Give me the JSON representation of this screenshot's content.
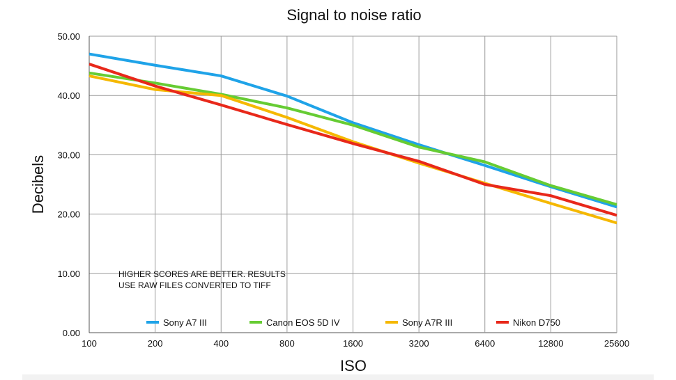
{
  "chart_data": {
    "type": "line",
    "title": "Signal to noise ratio",
    "xlabel": "ISO",
    "ylabel": "Decibels",
    "categories": [
      "100",
      "200",
      "400",
      "800",
      "1600",
      "3200",
      "6400",
      "12800",
      "25600"
    ],
    "y_ticks": [
      "0.00",
      "10.00",
      "20.00",
      "30.00",
      "40.00",
      "50.00"
    ],
    "ylim": [
      0,
      50
    ],
    "grid": true,
    "legend_position": "bottom",
    "annotation": [
      "HIGHER SCORES ARE BETTER. RESULTS",
      "USE RAW FILES CONVERTED TO TIFF"
    ],
    "series": [
      {
        "name": "Sony A7 III",
        "color": "#1fa3e8",
        "values": [
          47.0,
          45.1,
          43.3,
          39.9,
          35.4,
          31.7,
          28.2,
          24.6,
          21.2
        ]
      },
      {
        "name": "Canon EOS 5D IV",
        "color": "#66cc33",
        "values": [
          43.8,
          42.1,
          40.2,
          37.9,
          35.0,
          31.3,
          28.8,
          24.8,
          21.6
        ]
      },
      {
        "name": "Sony A7R III",
        "color": "#f5b800",
        "values": [
          43.3,
          41.0,
          40.0,
          36.3,
          32.2,
          28.6,
          25.2,
          21.8,
          18.5
        ]
      },
      {
        "name": "Nikon D750",
        "color": "#e8281a",
        "values": [
          45.3,
          41.6,
          38.4,
          35.1,
          31.9,
          28.9,
          25.0,
          23.1,
          19.8
        ]
      }
    ]
  }
}
